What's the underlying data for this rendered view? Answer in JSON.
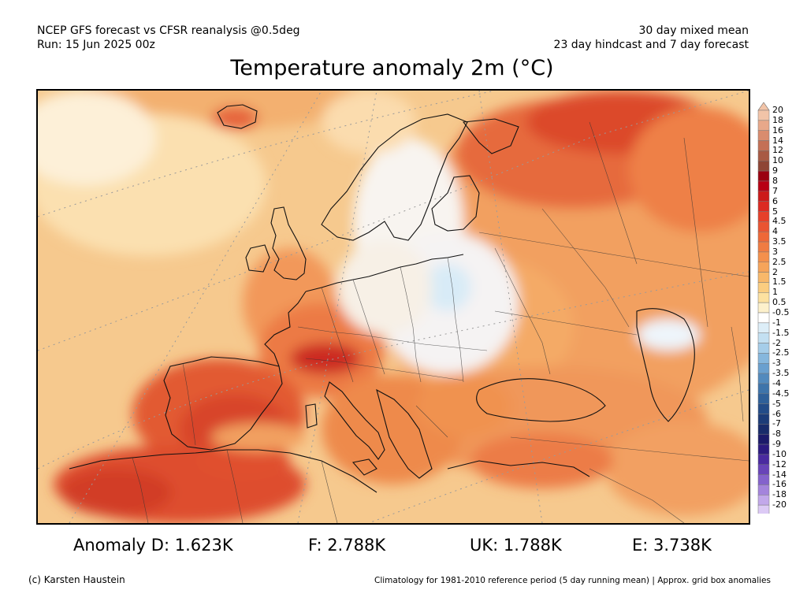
{
  "header": {
    "left_line1": "NCEP GFS forecast vs CFSR reanalysis @0.5deg",
    "left_line2": "Run: 15 Jun 2025 00z",
    "right_line1": "30 day mixed mean",
    "right_line2": "23 day hindcast and 7 day forecast"
  },
  "title": "Temperature anomaly 2m (°C)",
  "colorbar": {
    "labels": [
      "20",
      "18",
      "16",
      "14",
      "12",
      "10",
      "9",
      "8",
      "7",
      "6",
      "5",
      "4.5",
      "4",
      "3.5",
      "3",
      "2.5",
      "2",
      "1.5",
      "1",
      "0.5",
      "-0.5",
      "-1",
      "-1.5",
      "-2",
      "-2.5",
      "-3",
      "-3.5",
      "-4",
      "-4.5",
      "-5",
      "-6",
      "-7",
      "-8",
      "-9",
      "-10",
      "-12",
      "-14",
      "-16",
      "-18",
      "-20"
    ],
    "colors": [
      "#f2c4a8",
      "#e8a88a",
      "#d98c6e",
      "#c47055",
      "#a85a44",
      "#8e4535",
      "#9a0010",
      "#b80014",
      "#cc1a1a",
      "#dc2a22",
      "#e6402a",
      "#ea5432",
      "#ee6838",
      "#f07c42",
      "#f4904c",
      "#f6a45a",
      "#f8b86a",
      "#fbcd80",
      "#fde1a0",
      "#fdf1cc",
      "#ffffff",
      "#ddeef8",
      "#c3e0f2",
      "#a5cde9",
      "#86b7dd",
      "#6aa0cf",
      "#528abd",
      "#3e74aa",
      "#2f6099",
      "#234c88",
      "#1c3c78",
      "#182b6a",
      "#1c1a6a",
      "#2c1a80",
      "#4a2aa0",
      "#6844b8",
      "#8462cc",
      "#a484dc",
      "#c2a8ea",
      "#dccaf5"
    ]
  },
  "map": {
    "region": "Europe",
    "overlays": [
      "country-borders",
      "coastlines",
      "latitude-longitude-grid"
    ]
  },
  "anomalies": {
    "D": "Anomaly D: 1.623K",
    "F": "F: 2.788K",
    "UK": "UK: 1.788K",
    "E": "E: 3.738K"
  },
  "footer": {
    "copyright": "(c) Karsten Haustein",
    "note": "Climatology for 1981-2010 reference period (5 day running mean) | Approx. grid box anomalies"
  }
}
